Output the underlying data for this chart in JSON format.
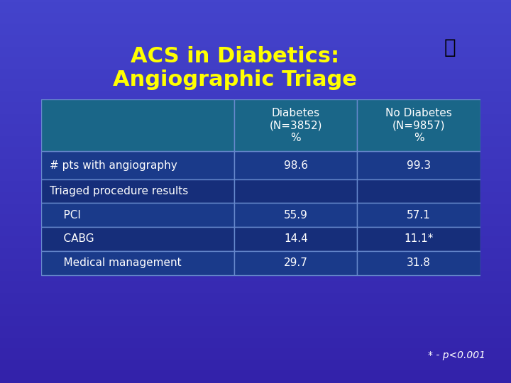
{
  "title_line1": "ACS in Diabetics:",
  "title_line2": "Angiographic Triage",
  "title_color": "#FFFF00",
  "bg_color_top": "#3333AA",
  "bg_color_bottom": "#5533BB",
  "table_border_color": "#AAAACC",
  "header_cell_color": "#007799",
  "header_text_color": "#FFFFFF",
  "row_label_color": "#2255BB",
  "row_data_color": "#1A3A8A",
  "row_alt_color": "#223388",
  "cell_text_color": "#FFFFFF",
  "col_headers": [
    "Diabetes\n(N=3852)\n%",
    "No Diabetes\n(N=9857)\n%"
  ],
  "row_labels": [
    "# pts with angiography",
    "Triaged procedure results",
    "    PCI",
    "    CABG",
    "    Medical management"
  ],
  "col1_values": [
    "98.6",
    "",
    "55.9",
    "14.4",
    "29.7"
  ],
  "col2_values": [
    "99.3",
    "",
    "57.1",
    "11.1*",
    "31.8"
  ],
  "footnote": "* - p<0.001",
  "footnote_color": "#FFFFFF"
}
